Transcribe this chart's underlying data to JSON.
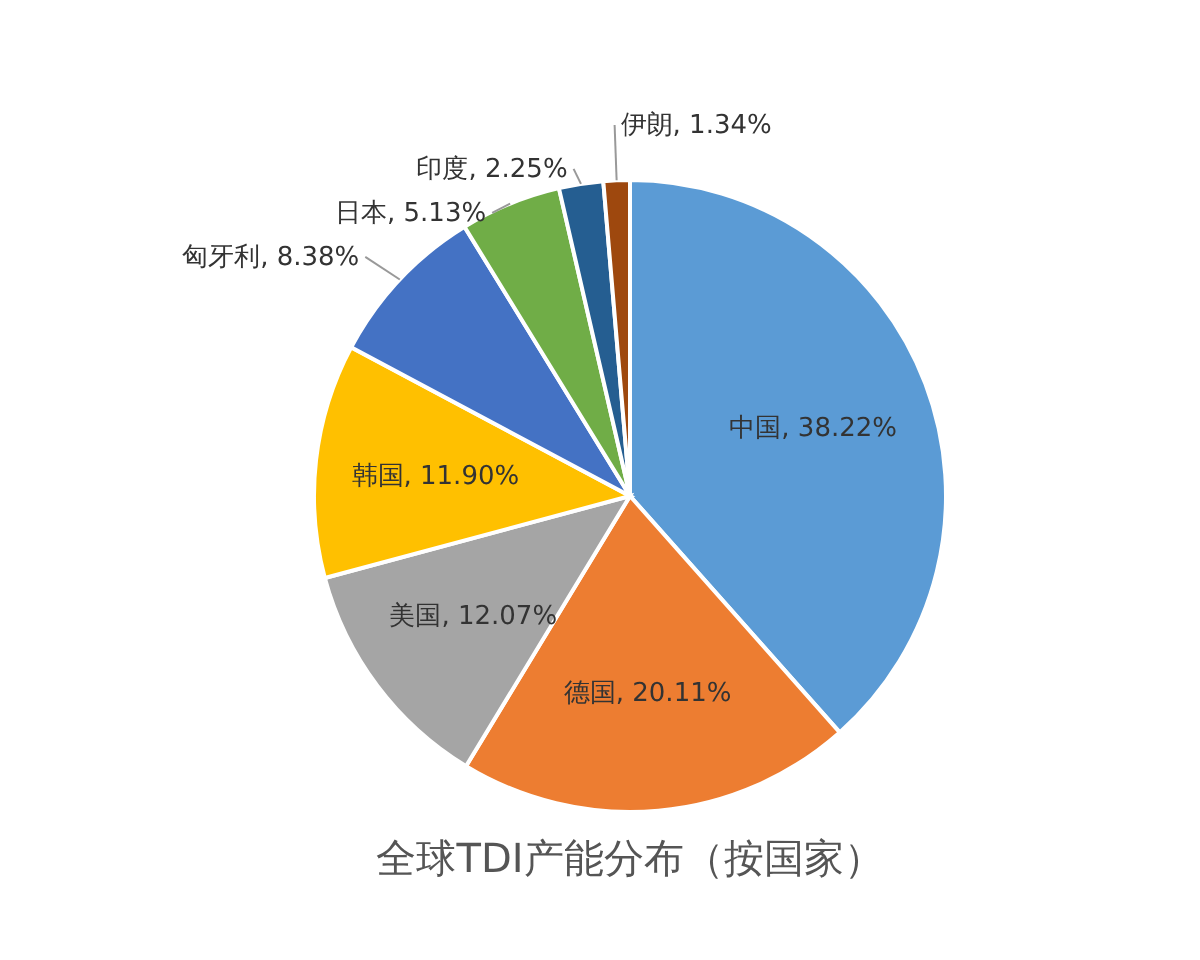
{
  "chart_data": {
    "type": "pie",
    "title": "全球TDI产能分布（按国家）",
    "categories": [
      "中国",
      "德国",
      "美国",
      "韩国",
      "匈牙利",
      "日本",
      "印度",
      "伊朗"
    ],
    "values": [
      38.22,
      20.11,
      12.07,
      11.9,
      8.38,
      5.13,
      2.25,
      1.34
    ],
    "value_labels": [
      "38.22%",
      "20.11%",
      "12.07%",
      "11.90%",
      "8.38%",
      "5.13%",
      "2.25%",
      "1.34%"
    ],
    "colors": [
      "#5b9bd5",
      "#ed7d31",
      "#a5a5a5",
      "#ffc000",
      "#4472c4",
      "#70ad47",
      "#255e91",
      "#9e480e"
    ],
    "legend": false
  }
}
